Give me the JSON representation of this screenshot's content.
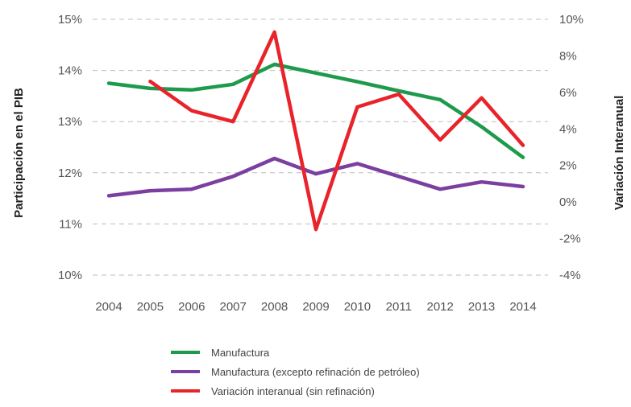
{
  "chart_data": {
    "type": "line",
    "categories": [
      "2004",
      "2005",
      "2006",
      "2007",
      "2008",
      "2009",
      "2010",
      "2011",
      "2012",
      "2013",
      "2014"
    ],
    "left_axis": {
      "label": "Participación en el PIB",
      "ticks": [
        "15%",
        "14%",
        "13%",
        "12%",
        "11%",
        "10%"
      ],
      "ylim": [
        10,
        15
      ]
    },
    "right_axis": {
      "label": "Variación Interanual",
      "ticks": [
        "10%",
        "8%",
        "6%",
        "4%",
        "2%",
        "0%",
        "-2%",
        "-4%"
      ],
      "ylim": [
        -4,
        10
      ]
    },
    "grid": true,
    "legend_position": "bottom",
    "series": [
      {
        "name": "Manufactura",
        "axis": "left",
        "color": "#1e9a4c",
        "values": [
          13.75,
          13.65,
          13.62,
          13.73,
          14.12,
          13.95,
          13.78,
          13.6,
          13.43,
          12.9,
          12.3
        ]
      },
      {
        "name": "Manufactura (excepto refinación de petróleo)",
        "axis": "left",
        "color": "#7b3fa0",
        "values": [
          11.55,
          11.65,
          11.68,
          11.93,
          12.28,
          11.98,
          12.18,
          11.93,
          11.68,
          11.82,
          11.73
        ]
      },
      {
        "name": "Variación interanual (sin refinación)",
        "axis": "right",
        "color": "#e8232a",
        "values": [
          null,
          6.6,
          5.0,
          4.4,
          9.3,
          -1.5,
          5.2,
          5.9,
          3.4,
          5.7,
          3.1
        ]
      }
    ]
  }
}
